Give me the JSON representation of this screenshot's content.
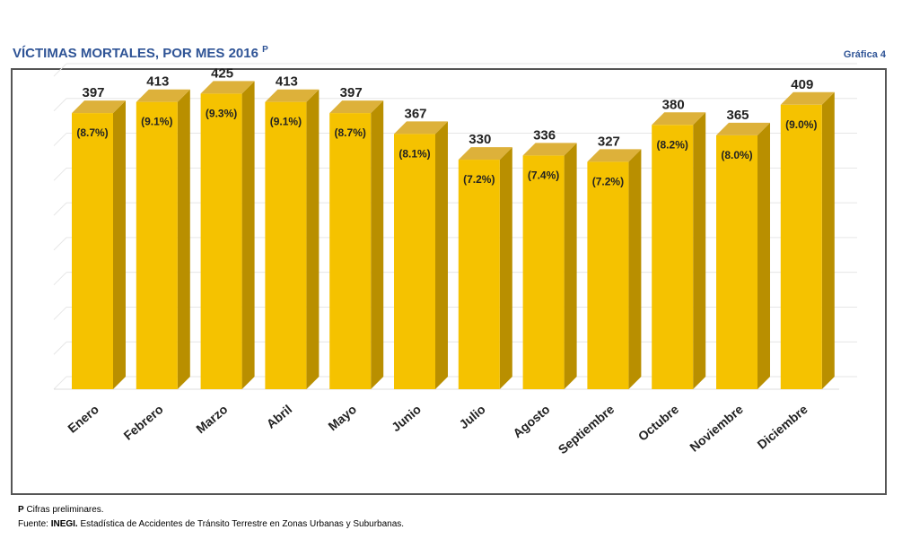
{
  "header": {
    "title": "VÍCTIMAS MORTALES, POR MES 2016",
    "title_superscript": "P",
    "figure_ref": "Gráfica 4"
  },
  "footer": {
    "note_marker": "P",
    "note_text": "Cifras preliminares.",
    "source_label": "Fuente:",
    "source_org": "INEGI.",
    "source_text": "Estadística de Accidentes de Tránsito Terrestre en Zonas Urbanas y Suburbanas."
  },
  "colors": {
    "title": "#2f5496",
    "bar_front": "#f5c200",
    "bar_side": "#b98f00",
    "bar_top": "#ddb13a"
  },
  "chart_data": {
    "type": "bar",
    "title": "VÍCTIMAS MORTALES, POR MES 2016",
    "categories": [
      "Enero",
      "Febrero",
      "Marzo",
      "Abril",
      "Mayo",
      "Junio",
      "Julio",
      "Agosto",
      "Septiembre",
      "Octubre",
      "Noviembre",
      "Diciembre"
    ],
    "values": [
      397,
      413,
      425,
      413,
      397,
      367,
      330,
      336,
      327,
      380,
      365,
      409
    ],
    "percent_labels": [
      "(8.7%)",
      "(9.1%)",
      "(9.3%)",
      "(9.1%)",
      "(8.7%)",
      "(8.1%)",
      "(7.2%)",
      "(7.4%)",
      "(7.2%)",
      "(8.2%)",
      "(8.0%)",
      "(9.0%)"
    ],
    "value_labels": [
      "397",
      "413",
      "425",
      "413",
      "397",
      "367",
      "330",
      "336",
      "327",
      "380",
      "365",
      "409"
    ],
    "ylim": [
      0,
      450
    ],
    "grid": true,
    "style": "3d-bar"
  }
}
